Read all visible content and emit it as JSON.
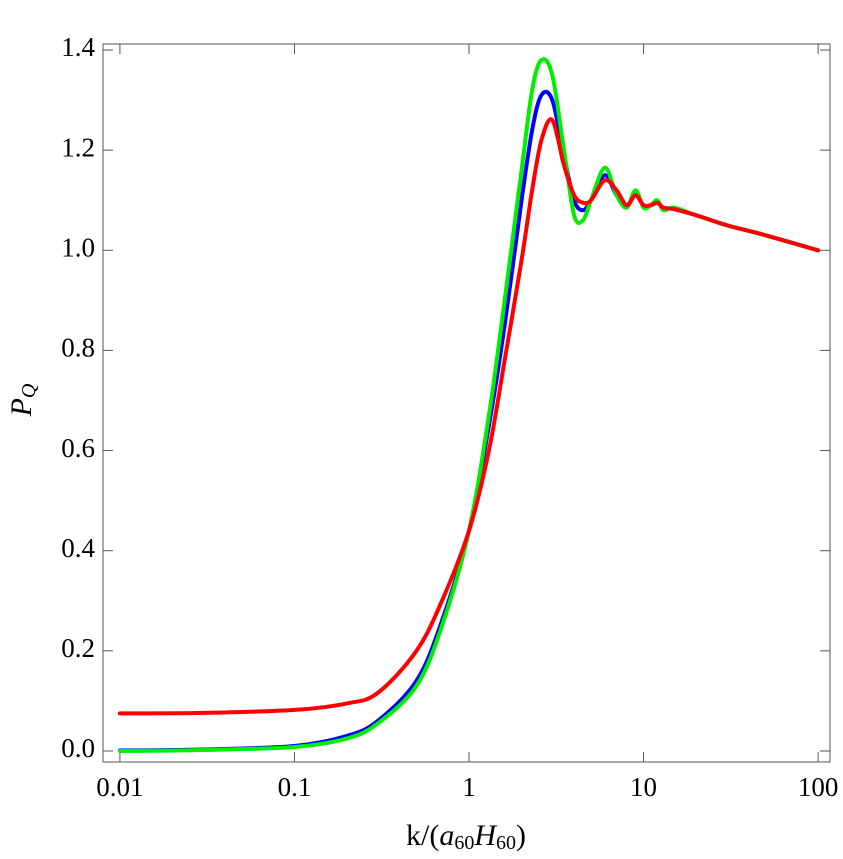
{
  "chart_data": {
    "type": "line",
    "log_x": true,
    "xlabel": [
      "k/(",
      "a",
      "60",
      "H",
      "60",
      ")"
    ],
    "ylabel": [
      "P",
      "Q"
    ],
    "x": [
      0.01,
      0.03,
      0.1,
      0.2,
      0.3,
      0.5,
      0.7,
      1,
      1.3,
      1.6,
      2,
      2.3,
      2.6,
      3,
      3.5,
      4,
      4.5,
      5,
      6,
      7,
      8,
      9,
      10,
      11,
      12,
      13,
      15,
      20,
      30,
      50,
      100
    ],
    "series": [
      {
        "color": "#0000ff",
        "values": [
          0.001,
          0.003,
          0.01,
          0.03,
          0.06,
          0.14,
          0.26,
          0.44,
          0.65,
          0.85,
          1.1,
          1.24,
          1.31,
          1.3,
          1.19,
          1.1,
          1.08,
          1.1,
          1.15,
          1.11,
          1.09,
          1.11,
          1.09,
          1.09,
          1.095,
          1.085,
          1.082,
          1.07,
          1.05,
          1.03,
          1.0
        ]
      },
      {
        "color": "#00ee00",
        "values": [
          0,
          0.002,
          0.008,
          0.025,
          0.055,
          0.13,
          0.25,
          0.44,
          0.67,
          0.9,
          1.16,
          1.32,
          1.38,
          1.35,
          1.2,
          1.07,
          1.06,
          1.1,
          1.165,
          1.11,
          1.085,
          1.12,
          1.085,
          1.09,
          1.1,
          1.08,
          1.085,
          1.07,
          1.05,
          1.03,
          1.0
        ]
      },
      {
        "color": "#ff0000",
        "values": [
          0.075,
          0.076,
          0.082,
          0.095,
          0.116,
          0.2,
          0.3,
          0.44,
          0.6,
          0.78,
          0.98,
          1.12,
          1.22,
          1.26,
          1.17,
          1.11,
          1.095,
          1.1,
          1.14,
          1.12,
          1.09,
          1.11,
          1.09,
          1.09,
          1.095,
          1.085,
          1.082,
          1.07,
          1.05,
          1.03,
          1.0
        ]
      }
    ],
    "xlim": [
      0.008,
      117
    ],
    "ylim": [
      -0.022,
      1.412
    ],
    "xticks": [
      0.01,
      0.1,
      1,
      10,
      100
    ],
    "yticks": [
      {
        "value": 0,
        "label": "0.0"
      },
      0.2,
      0.4,
      0.6,
      0.8,
      {
        "value": 1,
        "label": "1.0"
      },
      1.2,
      1.4
    ]
  }
}
